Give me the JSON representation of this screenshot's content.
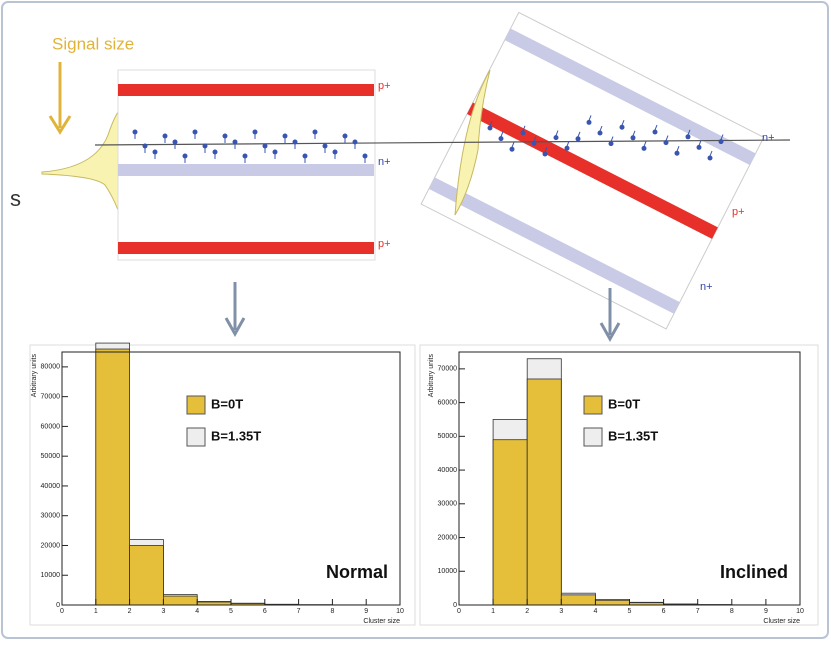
{
  "diagram": {
    "signal_label": "Signal size",
    "left_labels": [
      "p+",
      "n+",
      "p+"
    ],
    "right_labels": [
      "n+",
      "p+",
      "n+"
    ],
    "edge_text": "s"
  },
  "chart_data": [
    {
      "type": "histogram",
      "annotation": "Normal",
      "ylabel": "Arbitrary units",
      "xlabel": "Cluster size",
      "bins": [
        0,
        1,
        2,
        3,
        4,
        5,
        6,
        7,
        8,
        9,
        10
      ],
      "series": [
        {
          "name": "B=1.35T",
          "color": "#eeeeee",
          "values": [
            0,
            88000,
            22000,
            3500,
            1200,
            600,
            250,
            100,
            50,
            20
          ]
        },
        {
          "name": "B=0T",
          "color": "#e6bf3a",
          "values": [
            0,
            86000,
            20000,
            3000,
            1000,
            500,
            200,
            80,
            40,
            10
          ]
        }
      ],
      "xlim": [
        0,
        10
      ],
      "xticks": [
        0,
        1,
        2,
        3,
        4,
        5,
        6,
        7,
        8,
        9,
        10
      ],
      "ylim": [
        0,
        85000
      ],
      "yticks": [
        0,
        10000,
        20000,
        30000,
        40000,
        50000,
        60000,
        70000,
        80000
      ]
    },
    {
      "type": "histogram",
      "annotation": "Inclined",
      "ylabel": "Arbitrary units",
      "xlabel": "Cluster size",
      "bins": [
        0,
        1,
        2,
        3,
        4,
        5,
        6,
        7,
        8,
        9,
        10
      ],
      "series": [
        {
          "name": "B=1.35T",
          "color": "#eeeeee",
          "values": [
            0,
            55000,
            73000,
            3500,
            1600,
            800,
            300,
            120,
            50,
            20
          ]
        },
        {
          "name": "B=0T",
          "color": "#e6bf3a",
          "values": [
            0,
            49000,
            67000,
            3000,
            1400,
            700,
            250,
            100,
            40,
            10
          ]
        }
      ],
      "xlim": [
        0,
        10
      ],
      "xticks": [
        0,
        1,
        2,
        3,
        4,
        5,
        6,
        7,
        8,
        9,
        10
      ],
      "ylim": [
        0,
        75000
      ],
      "yticks": [
        0,
        10000,
        20000,
        30000,
        40000,
        50000,
        60000,
        70000
      ]
    }
  ]
}
